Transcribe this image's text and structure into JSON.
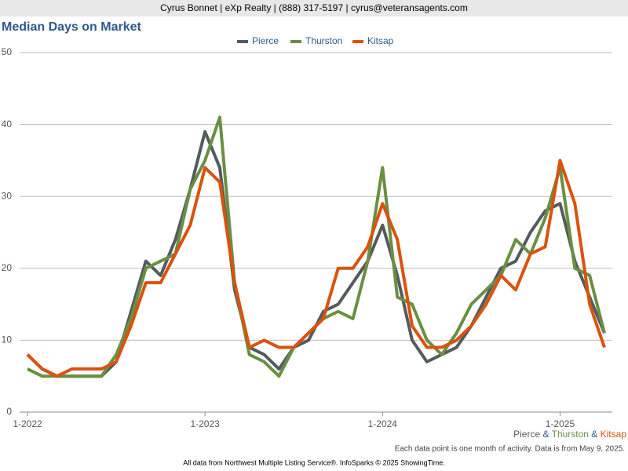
{
  "header": "Cyrus Bonnet | eXp Realty | (888) 317-5197 | cyrus@veteransagents.com",
  "chart_data": {
    "type": "line",
    "title": "Median Days on Market",
    "categories": [
      "1-2022",
      null,
      null,
      null,
      null,
      null,
      null,
      null,
      null,
      null,
      null,
      null,
      "1-2023",
      null,
      null,
      null,
      null,
      null,
      null,
      null,
      null,
      null,
      null,
      null,
      "1-2024",
      null,
      null,
      null,
      null,
      null,
      null,
      null,
      null,
      null,
      null,
      null,
      "1-2025",
      null,
      null,
      null
    ],
    "series": [
      {
        "name": "Pierce",
        "color": "#545b5e",
        "values": [
          8,
          6,
          5,
          5,
          5,
          5,
          7,
          14,
          21,
          19,
          24,
          31,
          39,
          34,
          17,
          9,
          8,
          6,
          9,
          10,
          14,
          15,
          18,
          21,
          26,
          19,
          10,
          7,
          8,
          9,
          12,
          16,
          20,
          21,
          25,
          28,
          29,
          21,
          16,
          11
        ]
      },
      {
        "name": "Thurston",
        "color": "#6a8f43",
        "values": [
          6,
          5,
          5,
          5,
          5,
          5,
          8,
          13,
          20,
          21,
          22,
          31,
          35,
          41,
          18,
          8,
          7,
          5,
          9,
          11,
          13,
          14,
          13,
          21,
          34,
          16,
          15,
          10,
          8,
          11,
          15,
          17,
          19,
          24,
          22,
          27,
          34,
          20,
          19,
          11
        ]
      },
      {
        "name": "Kitsap",
        "color": "#d9530f",
        "values": [
          8,
          6,
          5,
          6,
          6,
          6,
          7,
          12,
          18,
          18,
          22,
          26,
          34,
          32,
          18,
          9,
          10,
          9,
          9,
          11,
          13,
          20,
          20,
          23,
          29,
          24,
          12,
          9,
          9,
          10,
          12,
          15,
          19,
          17,
          22,
          23,
          35,
          29,
          15,
          9
        ]
      }
    ],
    "ylim": [
      0,
      50
    ],
    "yticks": [
      0,
      10,
      20,
      30,
      40,
      50
    ],
    "grid": true,
    "legend": "top",
    "separator": "&",
    "note": "Each data point is one month of activity. Data is from May 9, 2025.",
    "source": "All data from Northwest Multiple Listing Service®. InfoSparks © 2025 ShowingTime."
  }
}
